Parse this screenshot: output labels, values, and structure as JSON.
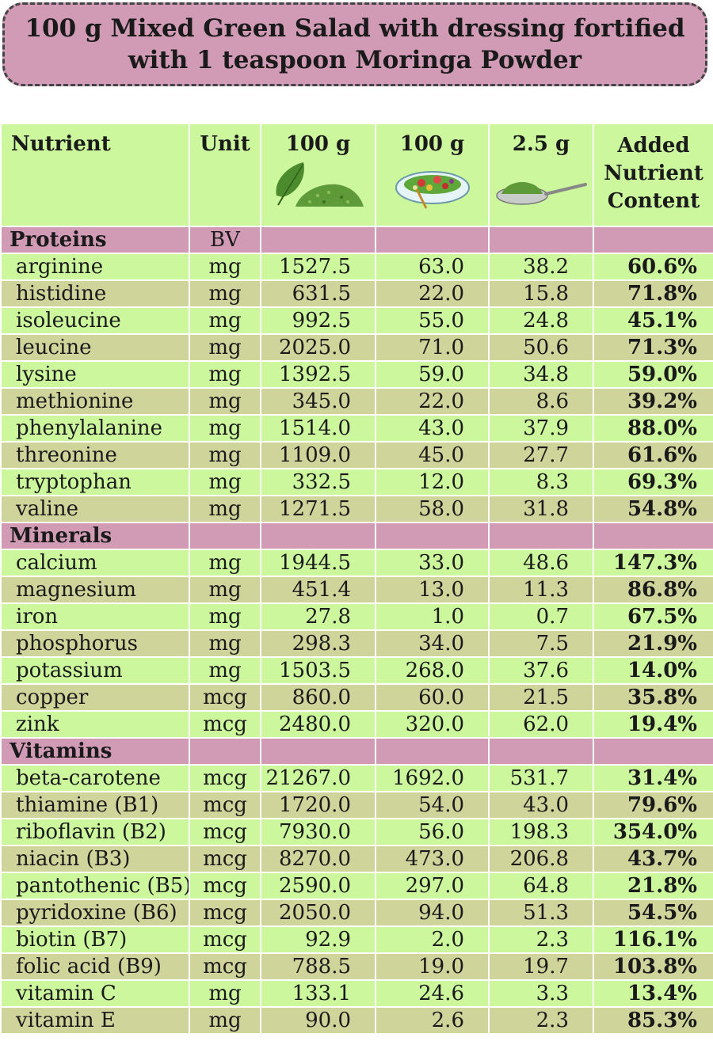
{
  "title": {
    "line1": "100 g Mixed Green Salad with dressing fortified",
    "line2": "with 1 teaspoon Moringa Powder"
  },
  "headers": {
    "nutrient": "Nutrient",
    "unit": "Unit",
    "col1": "100 g",
    "col2": "100 g",
    "col3": "2.5 g",
    "added": [
      "Added",
      "Nutrient",
      "Content"
    ],
    "icons": [
      "moringa-leaf-powder-icon",
      "salad-bowl-icon",
      "spoon-powder-icon"
    ]
  },
  "colors": {
    "section": "#d19bb5",
    "row_light": "#ccf79d",
    "row_olive": "#cfd49a",
    "leaf": "#4c8a2e"
  },
  "sections": [
    {
      "name": "Proteins",
      "unit": "BV",
      "rows": [
        {
          "name": "arginine",
          "unit": "mg",
          "v1": "1527.5",
          "v2": "63.0",
          "v3": "38.2",
          "added": "60.6%"
        },
        {
          "name": "histidine",
          "unit": "mg",
          "v1": "631.5",
          "v2": "22.0",
          "v3": "15.8",
          "added": "71.8%"
        },
        {
          "name": "isoleucine",
          "unit": "mg",
          "v1": "992.5",
          "v2": "55.0",
          "v3": "24.8",
          "added": "45.1%"
        },
        {
          "name": "leucine",
          "unit": "mg",
          "v1": "2025.0",
          "v2": "71.0",
          "v3": "50.6",
          "added": "71.3%"
        },
        {
          "name": "lysine",
          "unit": "mg",
          "v1": "1392.5",
          "v2": "59.0",
          "v3": "34.8",
          "added": "59.0%"
        },
        {
          "name": "methionine",
          "unit": "mg",
          "v1": "345.0",
          "v2": "22.0",
          "v3": "8.6",
          "added": "39.2%"
        },
        {
          "name": "phenylalanine",
          "unit": "mg",
          "v1": "1514.0",
          "v2": "43.0",
          "v3": "37.9",
          "added": "88.0%"
        },
        {
          "name": "threonine",
          "unit": "mg",
          "v1": "1109.0",
          "v2": "45.0",
          "v3": "27.7",
          "added": "61.6%"
        },
        {
          "name": "tryptophan",
          "unit": "mg",
          "v1": "332.5",
          "v2": "12.0",
          "v3": "8.3",
          "added": "69.3%"
        },
        {
          "name": "valine",
          "unit": "mg",
          "v1": "1271.5",
          "v2": "58.0",
          "v3": "31.8",
          "added": "54.8%"
        }
      ]
    },
    {
      "name": "Minerals",
      "unit": "",
      "rows": [
        {
          "name": "calcium",
          "unit": "mg",
          "v1": "1944.5",
          "v2": "33.0",
          "v3": "48.6",
          "added": "147.3%"
        },
        {
          "name": "magnesium",
          "unit": "mg",
          "v1": "451.4",
          "v2": "13.0",
          "v3": "11.3",
          "added": "86.8%"
        },
        {
          "name": "iron",
          "unit": "mg",
          "v1": "27.8",
          "v2": "1.0",
          "v3": "0.7",
          "added": "67.5%"
        },
        {
          "name": "phosphorus",
          "unit": "mg",
          "v1": "298.3",
          "v2": "34.0",
          "v3": "7.5",
          "added": "21.9%"
        },
        {
          "name": "potassium",
          "unit": "mg",
          "v1": "1503.5",
          "v2": "268.0",
          "v3": "37.6",
          "added": "14.0%"
        },
        {
          "name": "copper",
          "unit": "mcg",
          "v1": "860.0",
          "v2": "60.0",
          "v3": "21.5",
          "added": "35.8%"
        },
        {
          "name": "zink",
          "unit": "mcg",
          "v1": "2480.0",
          "v2": "320.0",
          "v3": "62.0",
          "added": "19.4%"
        }
      ]
    },
    {
      "name": "Vitamins",
      "unit": "",
      "rows": [
        {
          "name": "beta-carotene",
          "unit": "mcg",
          "v1": "21267.0",
          "v2": "1692.0",
          "v3": "531.7",
          "added": "31.4%"
        },
        {
          "name": "thiamine (B1)",
          "unit": "mcg",
          "v1": "1720.0",
          "v2": "54.0",
          "v3": "43.0",
          "added": "79.6%"
        },
        {
          "name": "riboflavin (B2)",
          "unit": "mcg",
          "v1": "7930.0",
          "v2": "56.0",
          "v3": "198.3",
          "added": "354.0%"
        },
        {
          "name": "niacin (B3)",
          "unit": "mcg",
          "v1": "8270.0",
          "v2": "473.0",
          "v3": "206.8",
          "added": "43.7%"
        },
        {
          "name": "pantothenic (B5)",
          "unit": "mcg",
          "v1": "2590.0",
          "v2": "297.0",
          "v3": "64.8",
          "added": "21.8%"
        },
        {
          "name": "pyridoxine (B6)",
          "unit": "mcg",
          "v1": "2050.0",
          "v2": "94.0",
          "v3": "51.3",
          "added": "54.5%"
        },
        {
          "name": "biotin (B7)",
          "unit": "mcg",
          "v1": "92.9",
          "v2": "2.0",
          "v3": "2.3",
          "added": "116.1%"
        },
        {
          "name": "folic acid (B9)",
          "unit": "mcg",
          "v1": "788.5",
          "v2": "19.0",
          "v3": "19.7",
          "added": "103.8%"
        },
        {
          "name": "vitamin C",
          "unit": "mg",
          "v1": "133.1",
          "v2": "24.6",
          "v3": "3.3",
          "added": "13.4%"
        },
        {
          "name": "vitamin E",
          "unit": "mg",
          "v1": "90.0",
          "v2": "2.6",
          "v3": "2.3",
          "added": "85.3%"
        }
      ]
    }
  ]
}
